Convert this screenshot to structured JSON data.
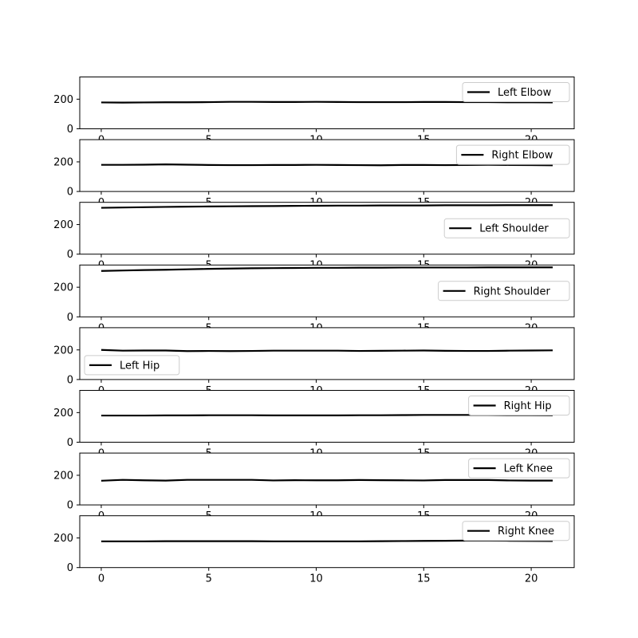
{
  "chart_data": [
    {
      "type": "line",
      "series": [
        {
          "name": "Left Elbow",
          "x": [
            0,
            1,
            2,
            3,
            4,
            5,
            6,
            7,
            8,
            9,
            10,
            11,
            12,
            13,
            14,
            15,
            16,
            17,
            18,
            19,
            20,
            21
          ],
          "values": [
            178,
            177,
            178,
            179,
            179,
            180,
            182,
            182,
            181,
            181,
            182,
            181,
            180,
            180,
            180,
            181,
            181,
            180,
            180,
            179,
            179,
            178
          ]
        }
      ],
      "ylim": [
        0,
        350
      ],
      "yticks": [
        0,
        200
      ],
      "xlim": [
        -1,
        22
      ],
      "xticks": [
        0,
        5,
        10,
        15,
        20
      ],
      "legend": "upper right"
    },
    {
      "type": "line",
      "series": [
        {
          "name": "Right Elbow",
          "x": [
            0,
            1,
            2,
            3,
            4,
            5,
            6,
            7,
            8,
            9,
            10,
            11,
            12,
            13,
            14,
            15,
            16,
            17,
            18,
            19,
            20,
            21
          ],
          "values": [
            180,
            180,
            181,
            183,
            181,
            179,
            178,
            178,
            179,
            179,
            180,
            179,
            178,
            177,
            179,
            179,
            178,
            179,
            180,
            179,
            178,
            177
          ]
        }
      ],
      "ylim": [
        0,
        350
      ],
      "yticks": [
        0,
        200
      ],
      "xlim": [
        -1,
        22
      ],
      "xticks": [
        0,
        5,
        10,
        15,
        20
      ],
      "legend": "upper right"
    },
    {
      "type": "line",
      "series": [
        {
          "name": "Left Shoulder",
          "x": [
            0,
            1,
            2,
            3,
            4,
            5,
            6,
            7,
            8,
            9,
            10,
            11,
            12,
            13,
            14,
            15,
            16,
            17,
            18,
            19,
            20,
            21
          ],
          "values": [
            313,
            315,
            317,
            319,
            321,
            322,
            323,
            324,
            325,
            326,
            327,
            328,
            328,
            329,
            329,
            329,
            330,
            330,
            330,
            331,
            331,
            331
          ]
        }
      ],
      "ylim": [
        0,
        350
      ],
      "yticks": [
        0,
        200
      ],
      "xlim": [
        -1,
        22
      ],
      "xticks": [
        0,
        5,
        10,
        15,
        20
      ],
      "legend": "center right"
    },
    {
      "type": "line",
      "series": [
        {
          "name": "Right Shoulder",
          "x": [
            0,
            1,
            2,
            3,
            4,
            5,
            6,
            7,
            8,
            9,
            10,
            11,
            12,
            13,
            14,
            15,
            16,
            17,
            18,
            19,
            20,
            21
          ],
          "values": [
            310,
            313,
            316,
            318,
            321,
            324,
            326,
            328,
            329,
            330,
            331,
            331,
            332,
            332,
            333,
            333,
            333,
            333,
            334,
            334,
            334,
            334
          ]
        }
      ],
      "ylim": [
        0,
        350
      ],
      "yticks": [
        0,
        200
      ],
      "xlim": [
        -1,
        22
      ],
      "xticks": [
        0,
        5,
        10,
        15,
        20
      ],
      "legend": "center right"
    },
    {
      "type": "line",
      "series": [
        {
          "name": "Left Hip",
          "x": [
            0,
            1,
            2,
            3,
            4,
            5,
            6,
            7,
            8,
            9,
            10,
            11,
            12,
            13,
            14,
            15,
            16,
            17,
            18,
            19,
            20,
            21
          ],
          "values": [
            200,
            195,
            196,
            196,
            192,
            193,
            192,
            193,
            195,
            195,
            195,
            195,
            193,
            194,
            195,
            196,
            194,
            193,
            193,
            195,
            196,
            197
          ]
        }
      ],
      "ylim": [
        0,
        350
      ],
      "yticks": [
        0,
        200
      ],
      "xlim": [
        -1,
        22
      ],
      "xticks": [
        0,
        5,
        10,
        15,
        20
      ],
      "legend": "lower left"
    },
    {
      "type": "line",
      "series": [
        {
          "name": "Right Hip",
          "x": [
            0,
            1,
            2,
            3,
            4,
            5,
            6,
            7,
            8,
            9,
            10,
            11,
            12,
            13,
            14,
            15,
            16,
            17,
            18,
            19,
            20,
            21
          ],
          "values": [
            180,
            180,
            180,
            181,
            181,
            182,
            182,
            182,
            181,
            181,
            181,
            181,
            182,
            182,
            183,
            184,
            184,
            184,
            184,
            183,
            183,
            182
          ]
        }
      ],
      "ylim": [
        0,
        350
      ],
      "yticks": [
        0,
        200
      ],
      "xlim": [
        -1,
        22
      ],
      "xticks": [
        0,
        5,
        10,
        15,
        20
      ],
      "legend": "upper right"
    },
    {
      "type": "line",
      "series": [
        {
          "name": "Left Knee",
          "x": [
            0,
            1,
            2,
            3,
            4,
            5,
            6,
            7,
            8,
            9,
            10,
            11,
            12,
            13,
            14,
            15,
            16,
            17,
            18,
            19,
            20,
            21
          ],
          "values": [
            163,
            169,
            166,
            164,
            169,
            169,
            169,
            169,
            165,
            167,
            166,
            166,
            168,
            167,
            166,
            165,
            168,
            168,
            168,
            165,
            164,
            164
          ]
        }
      ],
      "ylim": [
        0,
        350
      ],
      "yticks": [
        0,
        200
      ],
      "xlim": [
        -1,
        22
      ],
      "xticks": [
        0,
        5,
        10,
        15,
        20
      ],
      "legend": "upper right"
    },
    {
      "type": "line",
      "series": [
        {
          "name": "Right Knee",
          "x": [
            0,
            1,
            2,
            3,
            4,
            5,
            6,
            7,
            8,
            9,
            10,
            11,
            12,
            13,
            14,
            15,
            16,
            17,
            18,
            19,
            20,
            21
          ],
          "values": [
            177,
            177,
            177,
            178,
            178,
            178,
            178,
            178,
            177,
            177,
            177,
            177,
            177,
            178,
            179,
            180,
            181,
            182,
            182,
            181,
            180,
            179
          ]
        }
      ],
      "ylim": [
        0,
        350
      ],
      "yticks": [
        0,
        200
      ],
      "xlim": [
        -1,
        22
      ],
      "xticks": [
        0,
        5,
        10,
        15,
        20
      ],
      "legend": "upper right"
    }
  ]
}
